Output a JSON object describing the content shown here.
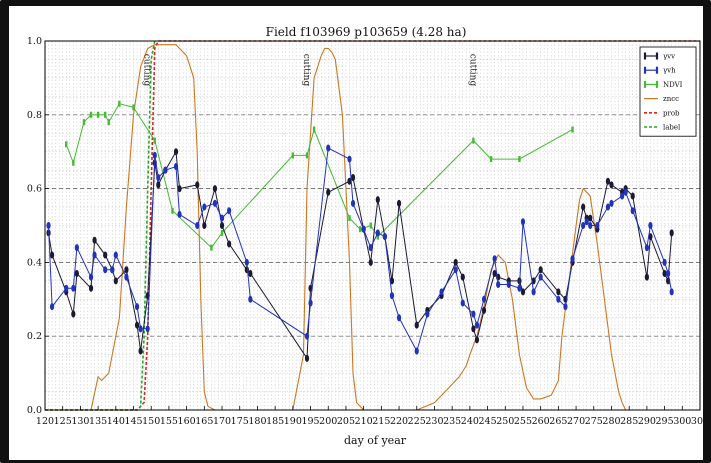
{
  "chart_data": {
    "type": "line",
    "title": "Field f103969 p103659 (4.28 ha)",
    "xlabel": "day of year",
    "ylabel": "",
    "xlim": [
      120,
      305
    ],
    "ylim": [
      0.0,
      1.0
    ],
    "x_ticks": [
      120,
      125,
      130,
      135,
      140,
      145,
      150,
      155,
      160,
      165,
      170,
      175,
      180,
      185,
      190,
      195,
      200,
      205,
      210,
      215,
      220,
      225,
      230,
      235,
      240,
      245,
      250,
      255,
      260,
      265,
      270,
      275,
      280,
      285,
      290,
      295,
      300,
      305
    ],
    "y_ticks": [
      0.0,
      0.2,
      0.4,
      0.6,
      0.8,
      1.0
    ],
    "y_tick_labels": [
      "0.0",
      "0.2",
      "0.4",
      "0.6",
      "0.8",
      "1.0"
    ],
    "grid": true,
    "legend_position": "top-right",
    "annotations": [
      {
        "text": "cutting",
        "x": 149
      },
      {
        "text": "cutting",
        "x": 194
      },
      {
        "text": "cutting",
        "x": 241
      }
    ],
    "series": [
      {
        "name": "γvv",
        "color": "#1a1a33",
        "style": "line-markers",
        "x": [
          121,
          122,
          126,
          128,
          129,
          133,
          134,
          137,
          139,
          140,
          143,
          146,
          147,
          149,
          151,
          152,
          154,
          157,
          158,
          163,
          165,
          168,
          170,
          172,
          177,
          178,
          194,
          195,
          200,
          206,
          207,
          210,
          212,
          214,
          216,
          218,
          220,
          225,
          228,
          232,
          236,
          238,
          241,
          242,
          244,
          247,
          248,
          251,
          254,
          255,
          258,
          260,
          265,
          267,
          269,
          272,
          273,
          274,
          276,
          279,
          280,
          283,
          284,
          286,
          290,
          291,
          295,
          296,
          297
        ],
        "values": [
          0.48,
          0.42,
          0.32,
          0.26,
          0.37,
          0.33,
          0.46,
          0.42,
          0.38,
          0.35,
          0.38,
          0.23,
          0.16,
          0.31,
          0.67,
          0.61,
          0.65,
          0.7,
          0.6,
          0.61,
          0.5,
          0.6,
          0.5,
          0.45,
          0.38,
          0.37,
          0.14,
          0.33,
          0.59,
          0.62,
          0.63,
          0.49,
          0.4,
          0.57,
          0.47,
          0.35,
          0.56,
          0.23,
          0.27,
          0.31,
          0.4,
          0.36,
          0.22,
          0.19,
          0.27,
          0.37,
          0.36,
          0.35,
          0.35,
          0.32,
          0.35,
          0.38,
          0.32,
          0.3,
          0.4,
          0.55,
          0.52,
          0.52,
          0.49,
          0.62,
          0.61,
          0.59,
          0.6,
          0.58,
          0.36,
          0.47,
          0.37,
          0.35,
          0.48
        ]
      },
      {
        "name": "γvh",
        "color": "#2233bb",
        "style": "line-markers",
        "x": [
          121,
          122,
          126,
          128,
          129,
          133,
          134,
          137,
          139,
          140,
          143,
          146,
          147,
          149,
          151,
          152,
          154,
          157,
          158,
          163,
          165,
          168,
          170,
          172,
          177,
          178,
          194,
          195,
          200,
          206,
          207,
          210,
          212,
          214,
          216,
          218,
          220,
          225,
          228,
          232,
          236,
          238,
          241,
          242,
          244,
          247,
          248,
          251,
          254,
          255,
          258,
          260,
          265,
          267,
          269,
          272,
          273,
          274,
          276,
          279,
          280,
          283,
          284,
          286,
          290,
          291,
          295,
          296,
          297
        ],
        "values": [
          0.5,
          0.28,
          0.33,
          0.33,
          0.44,
          0.36,
          0.42,
          0.38,
          0.38,
          0.42,
          0.36,
          0.28,
          0.22,
          0.22,
          0.69,
          0.63,
          0.65,
          0.66,
          0.53,
          0.5,
          0.55,
          0.56,
          0.52,
          0.54,
          0.4,
          0.3,
          0.2,
          0.29,
          0.71,
          0.68,
          0.56,
          0.49,
          0.44,
          0.48,
          0.47,
          0.31,
          0.25,
          0.16,
          0.26,
          0.32,
          0.38,
          0.29,
          0.26,
          0.23,
          0.3,
          0.41,
          0.34,
          0.34,
          0.33,
          0.51,
          0.32,
          0.36,
          0.3,
          0.28,
          0.41,
          0.5,
          0.51,
          0.5,
          0.5,
          0.55,
          0.56,
          0.58,
          0.59,
          0.54,
          0.44,
          0.5,
          0.4,
          0.37,
          0.32
        ]
      },
      {
        "name": "NDVI",
        "color": "#44bb33",
        "style": "line-markers",
        "x": [
          126,
          128,
          131,
          133,
          135,
          137,
          138,
          141,
          145,
          151,
          156,
          167,
          170,
          190,
          194,
          196,
          206,
          209,
          212,
          214,
          241,
          246,
          254,
          269
        ],
        "values": [
          0.72,
          0.67,
          0.78,
          0.8,
          0.8,
          0.8,
          0.78,
          0.83,
          0.82,
          0.73,
          0.54,
          0.44,
          0.48,
          0.69,
          0.69,
          0.76,
          0.52,
          0.49,
          0.5,
          0.47,
          0.73,
          0.68,
          0.68,
          0.76
        ]
      },
      {
        "name": "zncc",
        "color": "#cc7722",
        "style": "line",
        "x": [
          120,
          133,
          135,
          136,
          138,
          141,
          143,
          145,
          147,
          149,
          151,
          153,
          157,
          160,
          162,
          163,
          164,
          165,
          166,
          168,
          170,
          175,
          185,
          190,
          193,
          194,
          196,
          198,
          199,
          200,
          201,
          202,
          204,
          206,
          207,
          208,
          210,
          215,
          220,
          225,
          230,
          233,
          235,
          237,
          239,
          240,
          242,
          244,
          246,
          248,
          250,
          252,
          254,
          256,
          258,
          260,
          263,
          265,
          266,
          268,
          270,
          271,
          272,
          274,
          276,
          278,
          280,
          282,
          283,
          284,
          285,
          290,
          305
        ],
        "values": [
          0.0,
          0.0,
          0.09,
          0.08,
          0.1,
          0.25,
          0.55,
          0.8,
          0.93,
          0.98,
          0.99,
          0.99,
          0.99,
          0.96,
          0.9,
          0.7,
          0.3,
          0.05,
          0.01,
          0.0,
          0.0,
          0.0,
          0.0,
          0.0,
          0.15,
          0.6,
          0.9,
          0.96,
          0.98,
          0.98,
          0.97,
          0.95,
          0.8,
          0.4,
          0.1,
          0.02,
          0.0,
          0.0,
          0.0,
          0.0,
          0.02,
          0.05,
          0.07,
          0.09,
          0.12,
          0.15,
          0.2,
          0.28,
          0.38,
          0.42,
          0.4,
          0.3,
          0.15,
          0.06,
          0.03,
          0.03,
          0.04,
          0.08,
          0.2,
          0.35,
          0.5,
          0.57,
          0.6,
          0.58,
          0.45,
          0.3,
          0.15,
          0.05,
          0.02,
          0.0,
          0.0,
          0.0,
          0.0
        ]
      },
      {
        "name": "prob",
        "color": "#dd2222",
        "style": "dashed",
        "x": [
          120,
          146,
          147,
          148,
          149,
          150,
          151,
          152,
          305
        ],
        "values": [
          0.0,
          0.0,
          0.01,
          0.02,
          0.2,
          0.6,
          0.98,
          1.0,
          1.0
        ]
      },
      {
        "name": "label",
        "color": "#22aa22",
        "style": "dashed",
        "x": [
          120,
          146,
          147,
          148,
          149,
          150,
          151
        ],
        "values": [
          0.0,
          0.0,
          0.01,
          0.2,
          0.6,
          0.95,
          1.0
        ]
      }
    ]
  }
}
